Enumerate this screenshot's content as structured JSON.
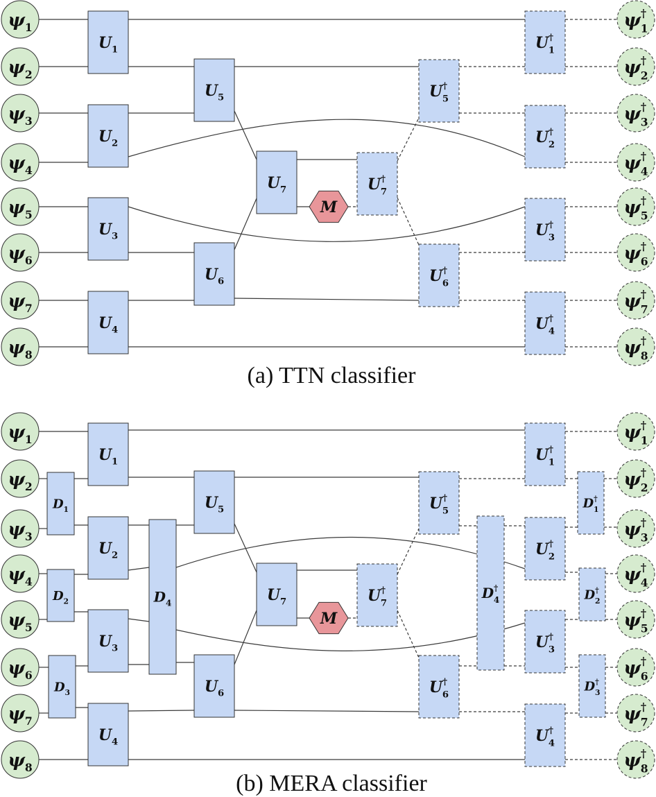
{
  "captions": {
    "ttn": "(a) TTN classifier",
    "mera": "(b) MERA classifier"
  },
  "inputs": [
    {
      "sym": "ψ",
      "sub": "1"
    },
    {
      "sym": "ψ",
      "sub": "2"
    },
    {
      "sym": "ψ",
      "sub": "3"
    },
    {
      "sym": "ψ",
      "sub": "4"
    },
    {
      "sym": "ψ",
      "sub": "5"
    },
    {
      "sym": "ψ",
      "sub": "6"
    },
    {
      "sym": "ψ",
      "sub": "7"
    },
    {
      "sym": "ψ",
      "sub": "8"
    }
  ],
  "outputs": [
    {
      "sym": "ψ",
      "sup": "†",
      "sub": "1"
    },
    {
      "sym": "ψ",
      "sup": "†",
      "sub": "2"
    },
    {
      "sym": "ψ",
      "sup": "†",
      "sub": "3"
    },
    {
      "sym": "ψ",
      "sup": "†",
      "sub": "4"
    },
    {
      "sym": "ψ",
      "sup": "†",
      "sub": "5"
    },
    {
      "sym": "ψ",
      "sup": "†",
      "sub": "6"
    },
    {
      "sym": "ψ",
      "sup": "†",
      "sub": "7"
    },
    {
      "sym": "ψ",
      "sup": "†",
      "sub": "8"
    }
  ],
  "gates": {
    "U1": {
      "sym": "U",
      "sub": "1"
    },
    "U2": {
      "sym": "U",
      "sub": "2"
    },
    "U3": {
      "sym": "U",
      "sub": "3"
    },
    "U4": {
      "sym": "U",
      "sub": "4"
    },
    "U5": {
      "sym": "U",
      "sub": "5"
    },
    "U6": {
      "sym": "U",
      "sub": "6"
    },
    "U7": {
      "sym": "U",
      "sub": "7"
    },
    "U1d": {
      "sym": "U",
      "sup": "†",
      "sub": "1"
    },
    "U2d": {
      "sym": "U",
      "sup": "†",
      "sub": "2"
    },
    "U3d": {
      "sym": "U",
      "sup": "†",
      "sub": "3"
    },
    "U4d": {
      "sym": "U",
      "sup": "†",
      "sub": "4"
    },
    "U5d": {
      "sym": "U",
      "sup": "†",
      "sub": "5"
    },
    "U6d": {
      "sym": "U",
      "sup": "†",
      "sub": "6"
    },
    "U7d": {
      "sym": "U",
      "sup": "†",
      "sub": "7"
    },
    "D1": {
      "sym": "D",
      "sub": "1"
    },
    "D2": {
      "sym": "D",
      "sub": "2"
    },
    "D3": {
      "sym": "D",
      "sub": "3"
    },
    "D4": {
      "sym": "D",
      "sub": "4"
    },
    "D1d": {
      "sym": "D",
      "sup": "†",
      "sub": "1"
    },
    "D2d": {
      "sym": "D",
      "sup": "†",
      "sub": "2"
    },
    "D3d": {
      "sym": "D",
      "sup": "†",
      "sub": "3"
    },
    "D4d": {
      "sym": "D",
      "sup": "†",
      "sub": "4"
    },
    "M": {
      "sym": "M"
    }
  },
  "colors": {
    "gate_fill": "#c6d8f5",
    "measure_fill": "#e8969a",
    "qubit_fill": "#d6ebcf"
  }
}
